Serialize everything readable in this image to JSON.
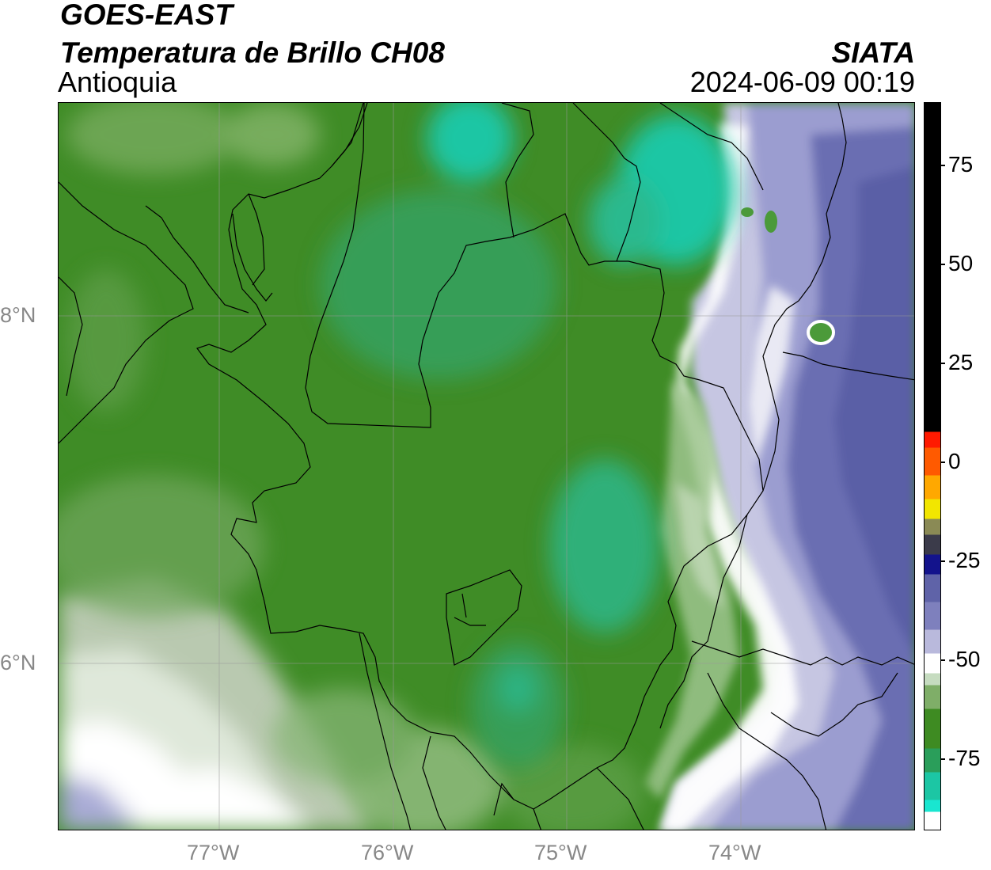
{
  "header": {
    "title_line1": "GOES-EAST",
    "title_line2": "Temperatura de Brillo CH08",
    "region": "Antioquia",
    "brand": "SIATA",
    "datetime": "2024-06-09 00:19"
  },
  "map": {
    "lat_labels": [
      "8°N",
      "6°N"
    ],
    "lon_labels": [
      "77°W",
      "76°W",
      "75°W",
      "74°W"
    ],
    "gridlines": true,
    "colors": {
      "green_dark": "#3e8b22",
      "green_mid": "#4b9a3a",
      "teal": "#1fbf9a",
      "white": "#ffffff",
      "lavender": "#b9b9dc",
      "purple": "#5f63a8",
      "border": "#000000"
    }
  },
  "colorbar": {
    "tick_labels": [
      "75",
      "50",
      "25",
      "0",
      "-25",
      "-50",
      "-75"
    ],
    "tick_values": [
      75,
      50,
      25,
      0,
      -25,
      -50,
      -75
    ],
    "range": [
      -93,
      91
    ],
    "segments": [
      {
        "from": -93,
        "to": -88,
        "color": "#ffffff"
      },
      {
        "from": -88,
        "to": -85,
        "color": "#19e6d0"
      },
      {
        "from": -85,
        "to": -78,
        "color": "#1cc6a4"
      },
      {
        "from": -78,
        "to": -72,
        "color": "#2a9e5a"
      },
      {
        "from": -72,
        "to": -62,
        "color": "#3e8b22"
      },
      {
        "from": -62,
        "to": -56,
        "color": "#7fae68"
      },
      {
        "from": -56,
        "to": -53,
        "color": "#c6dcc0"
      },
      {
        "from": -53,
        "to": -48,
        "color": "#ffffff"
      },
      {
        "from": -48,
        "to": -42,
        "color": "#b9b9dc"
      },
      {
        "from": -42,
        "to": -35,
        "color": "#7e80bd"
      },
      {
        "from": -35,
        "to": -28,
        "color": "#5f63a8"
      },
      {
        "from": -28,
        "to": -23,
        "color": "#13138c"
      },
      {
        "from": -23,
        "to": -18,
        "color": "#3b3b4a"
      },
      {
        "from": -18,
        "to": -14,
        "color": "#8a8a55"
      },
      {
        "from": -14,
        "to": -9,
        "color": "#f2e600"
      },
      {
        "from": -9,
        "to": -3,
        "color": "#ffa800"
      },
      {
        "from": -3,
        "to": 4,
        "color": "#ff5a00"
      },
      {
        "from": 4,
        "to": 8,
        "color": "#ff1a00"
      },
      {
        "from": 8,
        "to": 91,
        "color": "#000000"
      }
    ]
  }
}
